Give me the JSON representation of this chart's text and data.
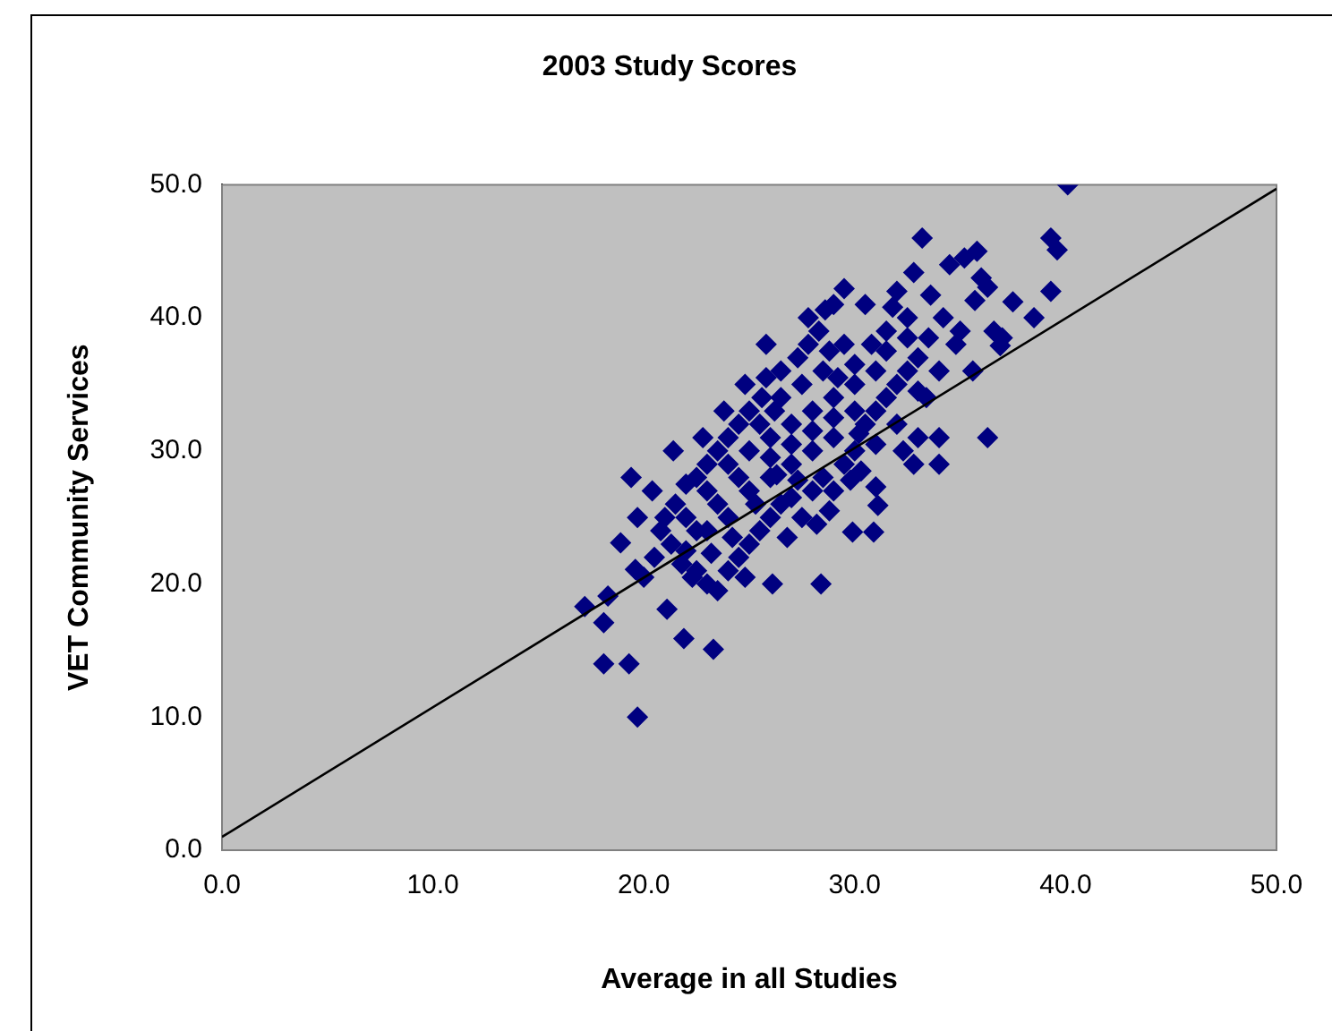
{
  "chart_data": {
    "type": "scatter",
    "title": "2003 Study Scores",
    "xlabel": "Average in all Studies",
    "ylabel": "VET Community Services",
    "xlim": [
      0,
      50
    ],
    "ylim": [
      0,
      50
    ],
    "xticks": [
      {
        "value": 0,
        "label": "0.0"
      },
      {
        "value": 10,
        "label": "10.0"
      },
      {
        "value": 20,
        "label": "20.0"
      },
      {
        "value": 30,
        "label": "30.0"
      },
      {
        "value": 40,
        "label": "40.0"
      },
      {
        "value": 50,
        "label": "50.0"
      }
    ],
    "yticks": [
      {
        "value": 0,
        "label": "0.0"
      },
      {
        "value": 10,
        "label": "10.0"
      },
      {
        "value": 20,
        "label": "20.0"
      },
      {
        "value": 30,
        "label": "30.0"
      },
      {
        "value": 40,
        "label": "40.0"
      },
      {
        "value": 50,
        "label": "50.0"
      }
    ],
    "grid": false,
    "legend": false,
    "marker": "diamond",
    "series": [
      {
        "type": "scatter",
        "color": "#000080",
        "x": [
          40.1,
          39.3,
          39.6,
          39.3,
          38.5,
          36.9,
          35.7,
          36.3,
          36,
          35.6,
          36.3,
          33.2,
          33.6,
          32.8,
          34,
          34,
          32.8,
          33,
          33.4,
          30.2,
          31,
          31.1,
          29.9,
          30.9,
          21.9,
          23.3,
          18.1,
          19.3,
          28.4,
          26.1,
          21.1,
          18.1,
          17.2,
          18.3,
          19.6,
          18.9,
          19.7,
          19.4,
          20.4,
          21.4,
          19.7,
          35.2,
          35.8,
          34.5,
          34.2,
          35,
          36.6,
          37.5,
          37,
          34.8,
          33.5,
          32.5,
          32,
          31.5,
          30.5,
          29.5,
          29,
          28.3,
          27.8,
          27.3,
          26.5,
          25.8,
          25.6,
          25,
          24.5,
          24,
          23.5,
          23,
          22.5,
          22,
          21.5,
          21,
          20.8,
          21.3,
          22,
          22.5,
          23,
          23.5,
          24,
          24.5,
          25,
          25.5,
          26,
          26.5,
          27,
          27.5,
          28,
          28.5,
          29,
          29.5,
          30,
          30.5,
          31,
          31.5,
          32,
          32.5,
          33,
          31,
          30,
          29,
          28,
          27,
          26,
          25,
          24,
          23,
          22,
          23,
          24,
          25,
          26,
          27,
          28,
          29,
          30,
          31,
          32,
          33,
          34,
          28.5,
          27.5,
          26.5,
          25.5,
          24.5,
          23.5,
          22.5,
          26,
          27,
          28,
          29,
          30,
          31.5,
          32.5,
          29.5,
          28.8,
          26.3,
          27.3,
          28.8,
          29.8,
          25.3,
          24.2,
          23.2,
          22.3,
          21.8,
          20.5,
          20,
          24.8,
          26.8,
          28.2,
          30.3,
          32.3,
          25.8,
          24.8,
          23.8,
          22.8,
          27.8,
          28.6,
          29.2,
          30.8,
          31.8,
          26.2
        ],
        "values": [
          50,
          46,
          45.1,
          42,
          40,
          37.9,
          41.3,
          42.3,
          43,
          36,
          31,
          46,
          41.7,
          43.4,
          31,
          29,
          29,
          31,
          34,
          31.3,
          27.3,
          25.9,
          23.9,
          23.9,
          15.9,
          15.1,
          14,
          14,
          20,
          20,
          18.1,
          17.1,
          18.3,
          19.1,
          21.1,
          23.1,
          25,
          28,
          27,
          30,
          10,
          44.5,
          45,
          44,
          40,
          39,
          39,
          41.2,
          38.5,
          38,
          38.5,
          40,
          42,
          39,
          41,
          42.2,
          41,
          39,
          38,
          37,
          36,
          38,
          34,
          33,
          32,
          31,
          30,
          29,
          28,
          27.5,
          26,
          25,
          24,
          23,
          22.5,
          21,
          20,
          19.5,
          21,
          22,
          23,
          24,
          25,
          26,
          26.5,
          25,
          27,
          28,
          27,
          29,
          30,
          32,
          33,
          34,
          35,
          36,
          37,
          36,
          35,
          34,
          33,
          32,
          31,
          30,
          29,
          27,
          25,
          24,
          25,
          27,
          28,
          29,
          30,
          31,
          33,
          30.5,
          32,
          34.5,
          36,
          36,
          35,
          34,
          32,
          28,
          26,
          24,
          29.5,
          30.5,
          31.5,
          32.5,
          36.5,
          37.5,
          38.5,
          38,
          37.5,
          28.2,
          27.8,
          25.5,
          27.8,
          26,
          23.5,
          22.3,
          20.5,
          21.5,
          22,
          20.5,
          20.5,
          23.5,
          24.5,
          28.5,
          30,
          35.5,
          35,
          33,
          31,
          40,
          40.6,
          35.5,
          38,
          40.8,
          33
        ]
      },
      {
        "type": "line",
        "color": "#000000",
        "marker": "none",
        "x": [
          0,
          50
        ],
        "values": [
          1,
          49.7
        ]
      }
    ]
  }
}
